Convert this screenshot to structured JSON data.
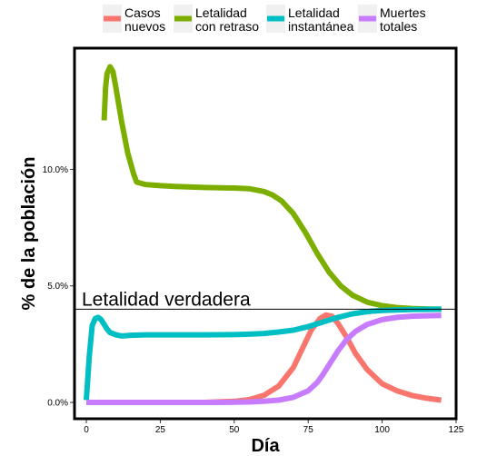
{
  "chart_data": {
    "type": "line",
    "title": "",
    "xlabel": "Día",
    "ylabel": "% de la población",
    "xlim": [
      -4,
      125
    ],
    "ylim": [
      -0.7,
      15.2
    ],
    "x_ticks": [
      0,
      25,
      50,
      75,
      100,
      125
    ],
    "x_tick_labels": [
      "0",
      "25",
      "50",
      "75",
      "100",
      "125"
    ],
    "y_ticks": [
      0,
      5,
      10
    ],
    "y_tick_labels": [
      "0.0%",
      "5.0%",
      "10.0%"
    ],
    "grid": false,
    "legend_position": "top",
    "reference_line": {
      "y": 4.0,
      "label": "Letalidad verdadera"
    },
    "series": [
      {
        "name": "Casos nuevos",
        "label_lines": [
          "Casos",
          "nuevos"
        ],
        "color": "#F8766D",
        "x": [
          0,
          10,
          20,
          30,
          40,
          50,
          55,
          60,
          65,
          70,
          73,
          76,
          79,
          81,
          83,
          85,
          88,
          91,
          95,
          100,
          105,
          110,
          115,
          120
        ],
        "y": [
          0,
          0,
          0,
          0,
          0,
          0.05,
          0.12,
          0.3,
          0.7,
          1.5,
          2.3,
          3.1,
          3.6,
          3.75,
          3.7,
          3.4,
          2.8,
          2.1,
          1.4,
          0.8,
          0.5,
          0.3,
          0.18,
          0.1
        ]
      },
      {
        "name": "Letalidad con retraso",
        "label_lines": [
          "Letalidad",
          "con retraso"
        ],
        "color": "#7CAE00",
        "x": [
          6,
          6.5,
          7,
          8,
          9,
          10,
          12,
          14,
          16,
          17,
          20,
          25,
          30,
          40,
          50,
          55,
          60,
          63,
          66,
          70,
          74,
          78,
          82,
          86,
          90,
          95,
          100,
          105,
          110,
          115,
          120
        ],
        "y": [
          12.1,
          13.5,
          14.1,
          14.4,
          14.2,
          13.5,
          12.0,
          10.7,
          9.8,
          9.45,
          9.35,
          9.3,
          9.27,
          9.22,
          9.2,
          9.17,
          9.05,
          8.9,
          8.65,
          8.1,
          7.3,
          6.4,
          5.6,
          5.0,
          4.6,
          4.3,
          4.15,
          4.07,
          4.03,
          4.01,
          4.0
        ]
      },
      {
        "name": "Letalidad instantánea",
        "label_lines": [
          "Letalidad",
          "instantánea"
        ],
        "color": "#00BFC4",
        "x": [
          0,
          1,
          2,
          3,
          4,
          5,
          6,
          7,
          8,
          10,
          12,
          15,
          20,
          30,
          40,
          50,
          55,
          60,
          65,
          70,
          75,
          80,
          85,
          90,
          95,
          100,
          110,
          120
        ],
        "y": [
          0.1,
          2.0,
          3.3,
          3.6,
          3.65,
          3.55,
          3.35,
          3.15,
          3.0,
          2.9,
          2.85,
          2.88,
          2.9,
          2.9,
          2.9,
          2.91,
          2.93,
          2.96,
          3.02,
          3.1,
          3.25,
          3.45,
          3.65,
          3.8,
          3.9,
          3.95,
          3.99,
          4.0
        ]
      },
      {
        "name": "Muertes totales",
        "label_lines": [
          "Muertes",
          "totales"
        ],
        "color": "#C77CFF",
        "x": [
          0,
          10,
          20,
          30,
          40,
          50,
          55,
          60,
          65,
          70,
          75,
          78,
          80,
          82,
          85,
          88,
          91,
          95,
          100,
          105,
          110,
          115,
          120
        ],
        "y": [
          0,
          0,
          0,
          0,
          0,
          0.01,
          0.02,
          0.05,
          0.1,
          0.22,
          0.5,
          0.85,
          1.2,
          1.6,
          2.2,
          2.7,
          3.05,
          3.35,
          3.55,
          3.65,
          3.7,
          3.72,
          3.73
        ]
      }
    ]
  }
}
